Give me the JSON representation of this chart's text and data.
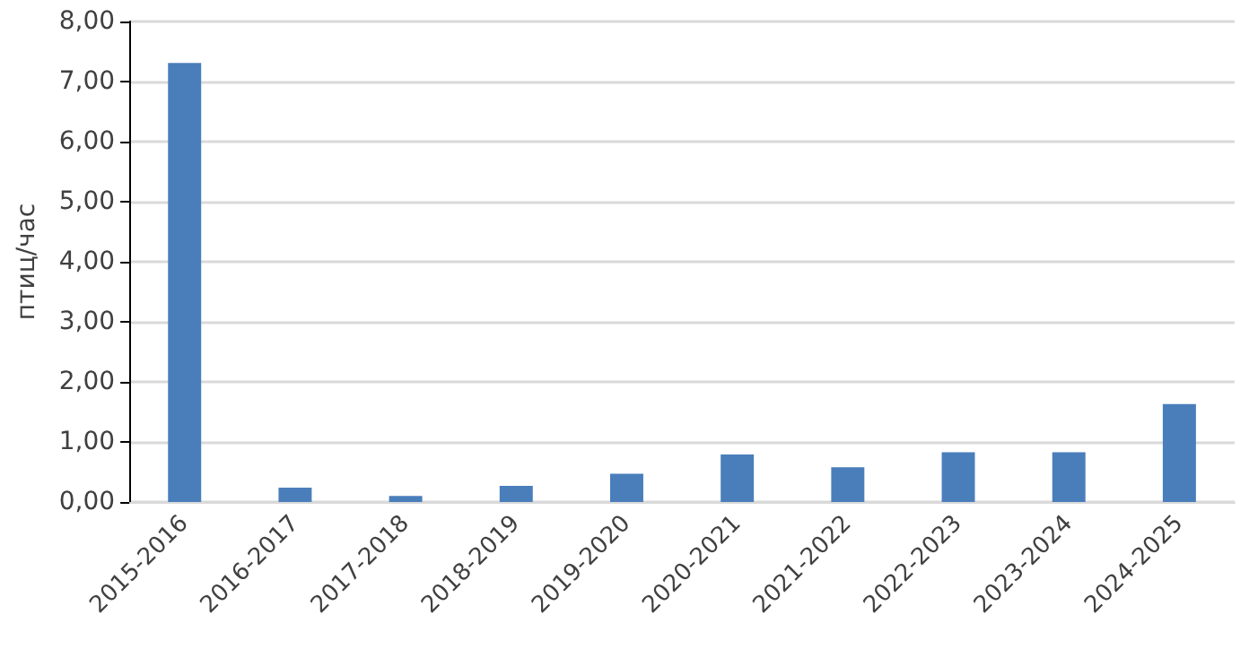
{
  "chart_data": {
    "type": "bar",
    "ylabel": "птиц/час",
    "categories": [
      "2015-2016",
      "2016-2017",
      "2017-2018",
      "2018-2019",
      "2019-2020",
      "2020-2021",
      "2021-2022",
      "2022-2023",
      "2023-2024",
      "2024-2025"
    ],
    "values": [
      7.31,
      0.24,
      0.1,
      0.27,
      0.47,
      0.79,
      0.58,
      0.83,
      0.83,
      1.63
    ],
    "color": "#4a7ebb",
    "ylim": [
      0,
      8
    ],
    "yticks": [
      {
        "value": 0,
        "label": "0,00"
      },
      {
        "value": 1,
        "label": "1,00"
      },
      {
        "value": 2,
        "label": "2,00"
      },
      {
        "value": 3,
        "label": "3,00"
      },
      {
        "value": 4,
        "label": "4,00"
      },
      {
        "value": 5,
        "label": "5,00"
      },
      {
        "value": 6,
        "label": "6,00"
      },
      {
        "value": 7,
        "label": "7,00"
      },
      {
        "value": 8,
        "label": "8,00"
      }
    ],
    "grid": "y"
  }
}
